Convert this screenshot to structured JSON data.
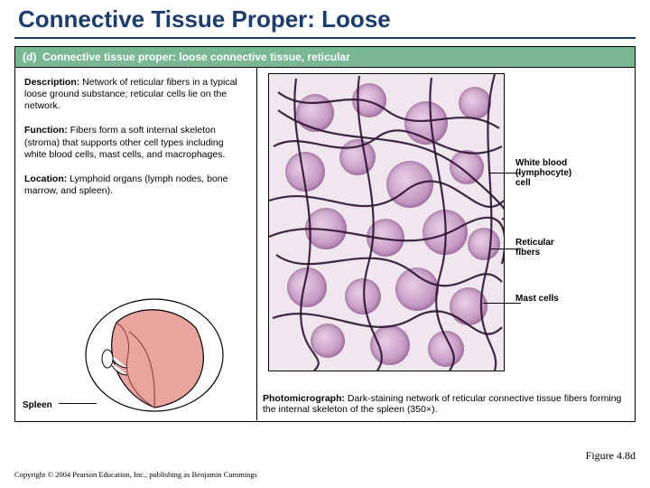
{
  "slide": {
    "title": "Connective Tissue Proper: Loose",
    "title_color": "#1c3c6e",
    "rule_color": "#1c3c6e"
  },
  "figure": {
    "header_label": "(d)",
    "header_text": "Connective tissue proper: loose connective tissue, reticular",
    "header_bg": "#7ab893",
    "header_fg": "#ffffff",
    "description_label": "Description:",
    "description_text": " Network of reticular fibers in a typical loose ground substance; reticular cells lie on the network.",
    "function_label": "Function:",
    "function_text": " Fibers form a soft internal skeleton (stroma) that supports other cell types including white blood cells, mast cells, and macrophages.",
    "location_label": "Location:",
    "location_text": " Lymphoid organs (lymph nodes, bone marrow, and spleen).",
    "diagram_label": "Spleen",
    "callouts": {
      "wbc": "White blood\n(lymphocyte)\ncell",
      "fibers": "Reticular\nfibers",
      "mast": "Mast cells"
    },
    "photo_caption_label": "Photomicrograph:",
    "photo_caption_text": " Dark-staining network of reticular connective tissue fibers forming the internal skeleton of the spleen (350×).",
    "micrograph_bg": "#f0e6ee",
    "cell_fill": "#c79cc5",
    "fiber_color": "#2b1230"
  },
  "footer": {
    "figure_ref": "Figure 4.8d",
    "copyright": "Copyright © 2004 Pearson Education, Inc., publishing as Benjamin Cummings"
  }
}
